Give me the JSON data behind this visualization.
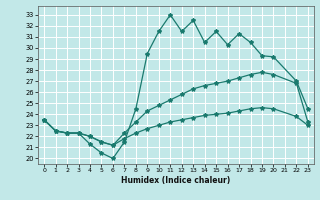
{
  "xlabel": "Humidex (Indice chaleur)",
  "background_color": "#c2e8e8",
  "grid_color": "#ffffff",
  "line_color": "#1a7a6e",
  "xlim": [
    -0.5,
    23.5
  ],
  "ylim": [
    19.5,
    33.8
  ],
  "xticks": [
    0,
    1,
    2,
    3,
    4,
    5,
    6,
    7,
    8,
    9,
    10,
    11,
    12,
    13,
    14,
    15,
    16,
    17,
    18,
    19,
    20,
    21,
    22,
    23
  ],
  "yticks": [
    20,
    21,
    22,
    23,
    24,
    25,
    26,
    27,
    28,
    29,
    30,
    31,
    32,
    33
  ],
  "series": [
    {
      "x": [
        0,
        1,
        2,
        3,
        4,
        5,
        6,
        7,
        8,
        9,
        10,
        11,
        12,
        13,
        14,
        15,
        16,
        17,
        18,
        19,
        20,
        22,
        23
      ],
      "y": [
        23.5,
        22.5,
        22.3,
        22.3,
        21.3,
        20.5,
        20.0,
        21.5,
        24.5,
        29.5,
        31.5,
        33.0,
        31.5,
        32.5,
        30.5,
        31.5,
        30.3,
        31.3,
        30.5,
        29.3,
        29.2,
        27.0,
        24.5
      ]
    },
    {
      "x": [
        0,
        1,
        2,
        3,
        4,
        5,
        6,
        7,
        8,
        9,
        10,
        11,
        12,
        13,
        14,
        15,
        16,
        17,
        18,
        19,
        20,
        22,
        23
      ],
      "y": [
        23.5,
        22.5,
        22.3,
        22.3,
        22.0,
        21.5,
        21.2,
        22.3,
        23.3,
        24.3,
        24.8,
        25.3,
        25.8,
        26.3,
        26.6,
        26.8,
        27.0,
        27.3,
        27.6,
        27.8,
        27.6,
        26.8,
        23.3
      ]
    },
    {
      "x": [
        0,
        1,
        2,
        3,
        4,
        5,
        6,
        7,
        8,
        9,
        10,
        11,
        12,
        13,
        14,
        15,
        16,
        17,
        18,
        19,
        20,
        22,
        23
      ],
      "y": [
        23.5,
        22.5,
        22.3,
        22.3,
        22.0,
        21.5,
        21.2,
        21.8,
        22.3,
        22.7,
        23.0,
        23.3,
        23.5,
        23.7,
        23.9,
        24.0,
        24.1,
        24.3,
        24.5,
        24.6,
        24.5,
        23.8,
        23.0
      ]
    }
  ]
}
